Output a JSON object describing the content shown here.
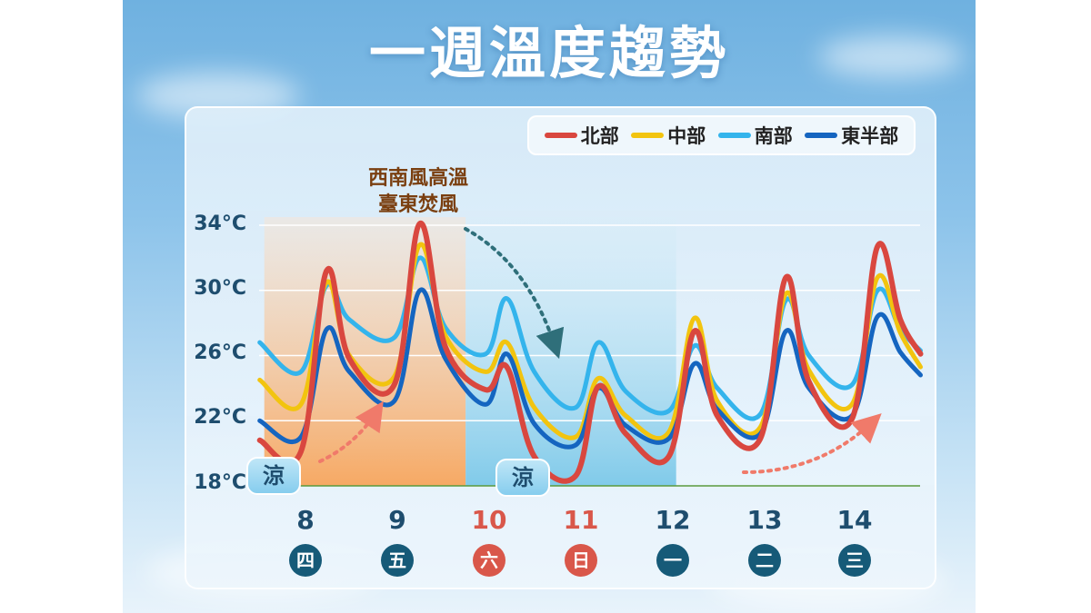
{
  "title": "一週溫度趨勢",
  "chart_data": {
    "type": "line",
    "title": "一週溫度趨勢",
    "y_ticks": [
      "34°C",
      "30°C",
      "26°C",
      "22°C",
      "18°C"
    ],
    "ylim": [
      18,
      34
    ],
    "dates": [
      "8",
      "9",
      "10",
      "11",
      "12",
      "13",
      "14"
    ],
    "weekdays": [
      "四",
      "五",
      "六",
      "日",
      "一",
      "二",
      "三"
    ],
    "x": [
      7.5,
      7.95,
      8.23,
      8.48,
      8.97,
      9.25,
      9.53,
      9.97,
      10.2,
      10.5,
      10.95,
      11.2,
      11.5,
      11.97,
      12.25,
      12.5,
      12.97,
      13.25,
      13.5,
      13.97,
      14.25,
      14.5,
      14.72
    ],
    "series": [
      {
        "name": "北部",
        "color": "#d9473f",
        "values": [
          20.8,
          20.1,
          31.2,
          25.8,
          24.2,
          34.1,
          26.5,
          23.9,
          25.3,
          19.8,
          18.6,
          24.1,
          21.2,
          19.8,
          27.5,
          22.3,
          20.9,
          30.8,
          24.4,
          22.1,
          32.7,
          28.2,
          26.1
        ]
      },
      {
        "name": "中部",
        "color": "#f2c40f",
        "values": [
          24.5,
          23.0,
          30.5,
          26.0,
          24.7,
          32.8,
          27.2,
          25.0,
          26.8,
          22.8,
          21.0,
          24.6,
          22.3,
          21.3,
          28.3,
          23.2,
          21.6,
          29.8,
          25.1,
          23.0,
          30.8,
          27.4,
          25.3
        ]
      },
      {
        "name": "南部",
        "color": "#34b4ec",
        "values": [
          26.8,
          25.0,
          30.3,
          28.2,
          27.1,
          32.0,
          27.7,
          26.1,
          29.5,
          25.0,
          22.8,
          26.8,
          23.8,
          22.6,
          26.6,
          24.0,
          22.4,
          29.4,
          26.0,
          24.2,
          30.0,
          27.6,
          26.3
        ]
      },
      {
        "name": "東半部",
        "color": "#1565c0",
        "values": [
          22.0,
          21.0,
          27.6,
          25.0,
          23.2,
          30.0,
          25.8,
          23.0,
          26.1,
          21.8,
          20.5,
          24.0,
          21.7,
          20.9,
          25.5,
          22.7,
          21.2,
          27.5,
          24.0,
          22.3,
          28.4,
          26.2,
          24.8
        ]
      }
    ],
    "legend_position": "top-right",
    "shaded_periods": [
      {
        "range": [
          7.55,
          9.75
        ],
        "color": "#f7a55c"
      },
      {
        "range": [
          9.75,
          12.05
        ],
        "color": "#6ec3e6"
      }
    ],
    "annotations": {
      "heat_note_line1": "西南風高溫",
      "heat_note_line2": "臺東焚風",
      "cool_label_1": "涼",
      "cool_label_2": "涼"
    }
  }
}
